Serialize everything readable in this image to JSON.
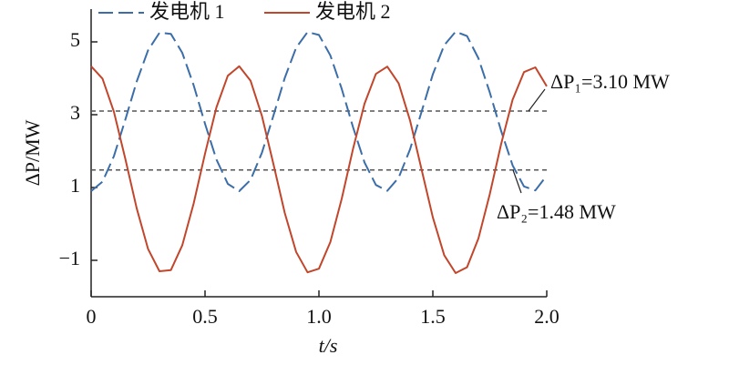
{
  "chart_data": {
    "type": "line",
    "x_label": "t/s",
    "y_label": "ΔP/MW",
    "x": [
      0,
      0.05,
      0.1,
      0.15,
      0.2,
      0.25,
      0.3,
      0.35,
      0.4,
      0.45,
      0.5,
      0.55,
      0.6,
      0.65,
      0.7,
      0.75,
      0.8,
      0.85,
      0.9,
      0.95,
      1.0,
      1.05,
      1.1,
      1.15,
      1.2,
      1.25,
      1.3,
      1.35,
      1.4,
      1.45,
      1.5,
      1.55,
      1.6,
      1.65,
      1.7,
      1.75,
      1.8,
      1.85,
      1.9,
      1.95,
      2.0
    ],
    "series": [
      {
        "name": "发电机 1",
        "color": "#3b6ea8",
        "dashed": true,
        "values": [
          0.9,
          1.16,
          1.86,
          2.86,
          3.91,
          4.77,
          5.25,
          5.22,
          4.7,
          3.81,
          2.75,
          1.77,
          1.1,
          0.9,
          1.21,
          1.96,
          2.97,
          4.01,
          4.84,
          5.27,
          5.19,
          4.63,
          3.71,
          2.65,
          1.69,
          1.07,
          0.91,
          1.27,
          2.05,
          3.07,
          4.11,
          4.91,
          5.28,
          5.16,
          4.55,
          3.61,
          2.55,
          1.61,
          1.03,
          0.92,
          1.33
        ]
      },
      {
        "name": "发电机 2",
        "color": "#c2462b",
        "dashed": false,
        "values": [
          4.33,
          3.99,
          3.08,
          1.79,
          0.43,
          -0.69,
          -1.3,
          -1.27,
          -0.59,
          0.56,
          1.93,
          3.2,
          4.07,
          4.33,
          3.93,
          2.96,
          1.65,
          0.3,
          -0.77,
          -1.33,
          -1.23,
          -0.5,
          0.69,
          2.07,
          3.3,
          4.12,
          4.32,
          3.86,
          2.84,
          1.51,
          0.18,
          -0.86,
          -1.35,
          -1.19,
          -0.4,
          0.82,
          2.2,
          3.41,
          4.17,
          4.3,
          3.78
        ]
      }
    ],
    "reference_lines": [
      {
        "value": 3.1,
        "label": "ΔP₁=3.10 MW"
      },
      {
        "value": 1.48,
        "label": "ΔP₂=1.48 MW"
      }
    ],
    "xlim": [
      0,
      2
    ],
    "xticks": [
      0,
      0.5,
      {
        "value": 1,
        "label": "1.0"
      },
      1.5,
      {
        "value": 2,
        "label": "2.0"
      }
    ],
    "ylim": [
      -2,
      5.9
    ],
    "yticks": [
      {
        "value": -1,
        "label": "−1"
      },
      1,
      3,
      5
    ],
    "legend": "top"
  }
}
